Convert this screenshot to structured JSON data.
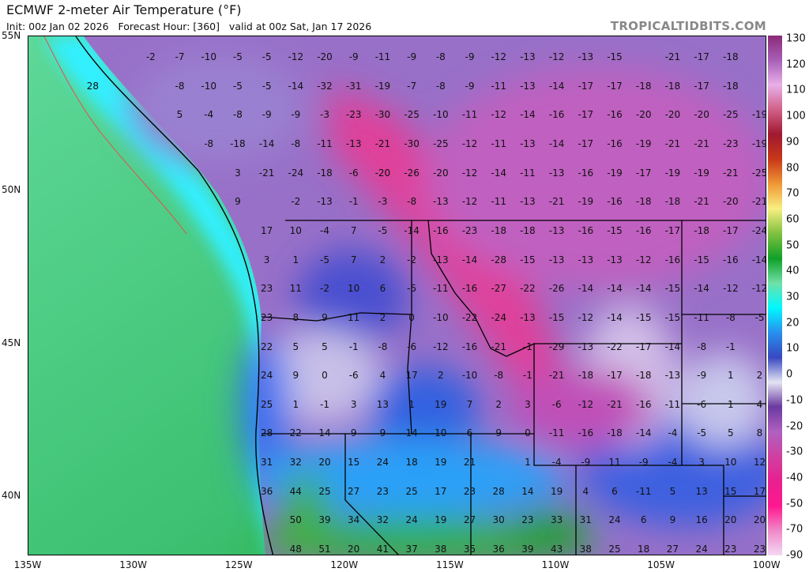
{
  "header": {
    "title": "ECMWF 2-meter Air Temperature (°F)",
    "subtitle": "Init: 00z Jan 02 2026   Forecast Hour: [360]   valid at 00z Sat, Jan 17 2026",
    "brand": "TROPICALTIDBITS.COM"
  },
  "axes": {
    "latitude_labels": [
      "55N",
      "50N",
      "45N",
      "40N"
    ],
    "longitude_labels": [
      "135W",
      "130W",
      "125W",
      "120W",
      "115W",
      "110W",
      "105W",
      "100W"
    ]
  },
  "colorbar": {
    "labels": [
      "130",
      "120",
      "110",
      "100",
      "90",
      "80",
      "70",
      "60",
      "50",
      "40",
      "30",
      "20",
      "10",
      "0",
      "-10",
      "-20",
      "-30",
      "-40",
      "-50",
      "-70",
      "-90"
    ],
    "colors": [
      "#8a2a78",
      "#a860b8",
      "#e8b0e8",
      "#d06088",
      "#a01830",
      "#c83818",
      "#f09838",
      "#f8f080",
      "#80c040",
      "#10a028",
      "#70e0a8",
      "#00f8ff",
      "#2890f0",
      "#3848c0",
      "#e4e4f4",
      "#6a3aa0",
      "#b060c0",
      "#d040a0",
      "#e82090",
      "#ff1890",
      "#f088c8",
      "#f4d8f4"
    ]
  },
  "temperature_grid": {
    "unit": "°F",
    "rows": [
      [
        null,
        null,
        null,
        null,
        -2,
        -7,
        -10,
        -5,
        -5,
        -12,
        -20,
        -9,
        -11,
        -9,
        -8,
        -9,
        -12,
        -13,
        -12,
        -13,
        -15,
        null,
        -21,
        -17,
        -18,
        null
      ],
      [
        null,
        null,
        28,
        null,
        null,
        -8,
        -10,
        -5,
        -5,
        -14,
        -32,
        -31,
        -19,
        -7,
        -8,
        -9,
        -11,
        -13,
        -14,
        -17,
        -17,
        -18,
        -18,
        -17,
        -18,
        null
      ],
      [
        null,
        null,
        null,
        null,
        null,
        5,
        -4,
        -8,
        -9,
        -9,
        -3,
        -23,
        -30,
        -25,
        -10,
        -11,
        -12,
        -14,
        -16,
        -17,
        -16,
        -20,
        -20,
        -20,
        -25,
        -19
      ],
      [
        null,
        null,
        null,
        null,
        null,
        null,
        -8,
        -18,
        -14,
        -8,
        -11,
        -13,
        -21,
        -30,
        -25,
        -12,
        -11,
        -13,
        -14,
        -17,
        -16,
        -19,
        -21,
        -21,
        -23,
        -19
      ],
      [
        null,
        null,
        null,
        null,
        null,
        null,
        null,
        3,
        -21,
        -24,
        -18,
        -6,
        -20,
        -26,
        -20,
        -12,
        -14,
        -11,
        -13,
        -16,
        -19,
        -17,
        -19,
        -19,
        -21,
        -25
      ],
      [
        null,
        null,
        null,
        null,
        null,
        null,
        null,
        9,
        null,
        -2,
        -13,
        -1,
        -3,
        -8,
        -13,
        -12,
        -11,
        -13,
        -21,
        -19,
        -16,
        -18,
        -18,
        -21,
        -20,
        -21
      ],
      [
        null,
        null,
        null,
        null,
        null,
        null,
        null,
        null,
        17,
        10,
        -4,
        7,
        -5,
        -14,
        -16,
        -23,
        -18,
        -18,
        -13,
        -16,
        -15,
        -16,
        -17,
        -18,
        -17,
        -24
      ],
      [
        null,
        null,
        null,
        null,
        null,
        null,
        null,
        null,
        3,
        1,
        -5,
        7,
        2,
        -2,
        -13,
        -14,
        -28,
        -15,
        -13,
        -13,
        -13,
        -12,
        -16,
        -15,
        -16,
        -14
      ],
      [
        null,
        null,
        null,
        null,
        null,
        null,
        null,
        null,
        23,
        11,
        -2,
        10,
        6,
        -5,
        -11,
        -16,
        -27,
        -22,
        -26,
        -14,
        -14,
        -14,
        -15,
        -14,
        -12,
        -12
      ],
      [
        null,
        null,
        null,
        null,
        null,
        null,
        null,
        null,
        23,
        8,
        9,
        11,
        2,
        0,
        -10,
        -22,
        -24,
        -13,
        -15,
        -12,
        -14,
        -15,
        -15,
        -11,
        -8,
        -5
      ],
      [
        null,
        null,
        null,
        null,
        null,
        null,
        null,
        null,
        22,
        5,
        5,
        -1,
        -8,
        -6,
        -12,
        -16,
        -21,
        -1,
        -29,
        -13,
        -22,
        -17,
        -14,
        -8,
        -1,
        null
      ],
      [
        null,
        null,
        null,
        null,
        null,
        null,
        null,
        null,
        24,
        9,
        0,
        -6,
        4,
        17,
        2,
        -10,
        -8,
        -1,
        -21,
        -18,
        -17,
        -18,
        -13,
        -9,
        1,
        2
      ],
      [
        null,
        null,
        null,
        null,
        null,
        null,
        null,
        null,
        25,
        1,
        -1,
        3,
        13,
        1,
        19,
        7,
        2,
        3,
        -6,
        -12,
        -21,
        -16,
        -11,
        -6,
        1,
        4
      ],
      [
        null,
        null,
        null,
        null,
        null,
        null,
        null,
        null,
        28,
        22,
        14,
        9,
        9,
        14,
        10,
        6,
        9,
        0,
        -11,
        -16,
        -18,
        -14,
        -4,
        -5,
        5,
        8
      ],
      [
        null,
        null,
        null,
        null,
        null,
        null,
        null,
        null,
        31,
        32,
        20,
        15,
        24,
        18,
        19,
        21,
        null,
        1,
        -4,
        -9,
        11,
        -9,
        -4,
        3,
        10,
        12
      ],
      [
        null,
        null,
        null,
        null,
        null,
        null,
        null,
        null,
        36,
        44,
        25,
        27,
        23,
        25,
        17,
        23,
        28,
        14,
        19,
        4,
        6,
        -11,
        5,
        13,
        15,
        17
      ],
      [
        null,
        null,
        null,
        null,
        null,
        null,
        null,
        null,
        null,
        50,
        39,
        34,
        32,
        24,
        19,
        27,
        30,
        23,
        33,
        31,
        24,
        6,
        9,
        16,
        20,
        20
      ],
      [
        null,
        null,
        null,
        null,
        null,
        null,
        null,
        null,
        null,
        48,
        51,
        20,
        41,
        37,
        38,
        35,
        36,
        39,
        43,
        38,
        25,
        18,
        27,
        24,
        23,
        23
      ]
    ]
  }
}
